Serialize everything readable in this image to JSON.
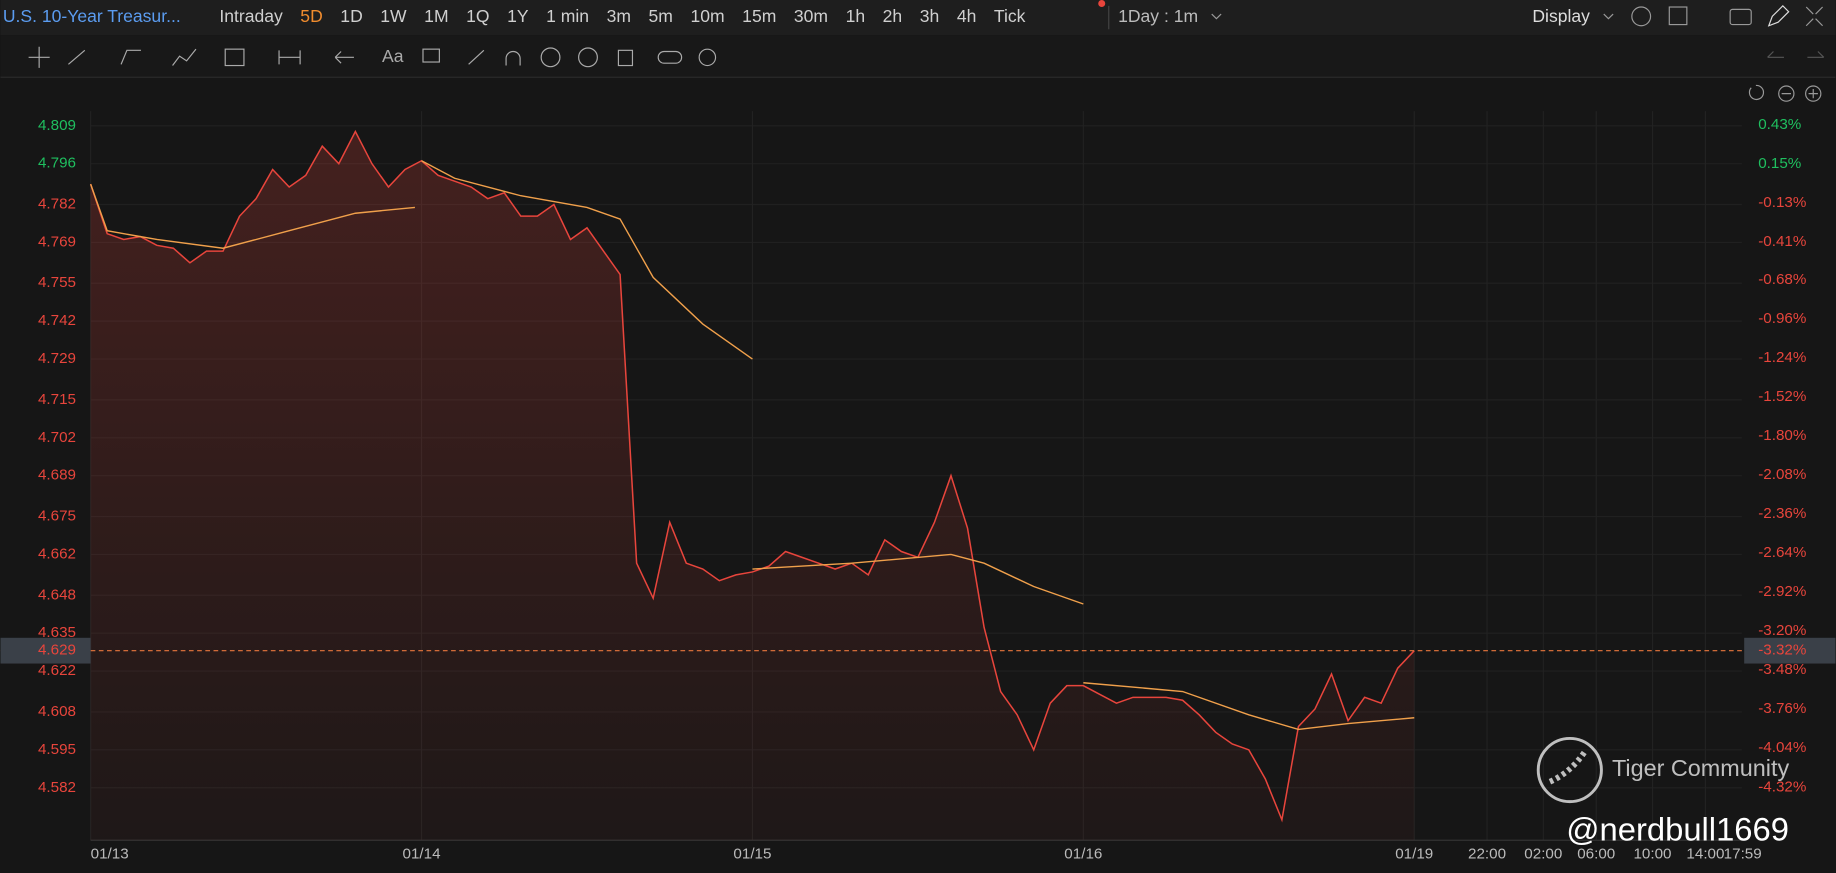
{
  "header": {
    "symbol": "U.S. 10-Year Treasur...",
    "periods": [
      {
        "label": "Intraday"
      },
      {
        "label": "5D",
        "active": true
      },
      {
        "label": "1D"
      },
      {
        "label": "1W"
      },
      {
        "label": "1M"
      },
      {
        "label": "1Q"
      },
      {
        "label": "1Y"
      },
      {
        "label": "1 min"
      },
      {
        "label": "3m"
      },
      {
        "label": "5m"
      },
      {
        "label": "10m"
      },
      {
        "label": "15m"
      },
      {
        "label": "30m"
      },
      {
        "label": "1h"
      },
      {
        "label": "2h"
      },
      {
        "label": "3h"
      },
      {
        "label": "4h"
      },
      {
        "label": "Tick"
      }
    ],
    "interval": "1Day : 1m",
    "display": "Display",
    "text_tool": "Aa"
  },
  "watermark": {
    "brand": "Tiger Community",
    "handle": "@nerdbull1669"
  },
  "chart_data": {
    "type": "line",
    "color": "#e8453c",
    "ma_color": "#f0a04b",
    "grid": true,
    "x": [
      0,
      0.05,
      0.1,
      0.15,
      0.2,
      0.25,
      0.3,
      0.35,
      0.4,
      0.45,
      0.5,
      0.55,
      0.6,
      0.65,
      0.7,
      0.75,
      0.8,
      0.85,
      0.9,
      0.95,
      1,
      1.05,
      1.1,
      1.15,
      1.2,
      1.25,
      1.3,
      1.35,
      1.4,
      1.45,
      1.5,
      1.55,
      1.6,
      1.65,
      1.7,
      1.75,
      1.8,
      1.85,
      1.9,
      1.95,
      2,
      2.05,
      2.1,
      2.15,
      2.2,
      2.25,
      2.3,
      2.35,
      2.4,
      2.45,
      2.5,
      2.55,
      2.6,
      2.65,
      2.7,
      2.75,
      2.8,
      2.85,
      2.9,
      2.95,
      3,
      3.05,
      3.1,
      3.15,
      3.2,
      3.25,
      3.3,
      3.35,
      3.4,
      3.45,
      3.5,
      3.55,
      3.6,
      3.65,
      3.7,
      3.75,
      3.8,
      3.85,
      3.9,
      3.95,
      4
    ],
    "values": [
      4.789,
      4.772,
      4.77,
      4.771,
      4.768,
      4.767,
      4.762,
      4.766,
      4.766,
      4.778,
      4.784,
      4.794,
      4.788,
      4.792,
      4.802,
      4.796,
      4.807,
      4.796,
      4.788,
      4.794,
      4.797,
      4.792,
      4.79,
      4.788,
      4.784,
      4.786,
      4.778,
      4.778,
      4.782,
      4.77,
      4.774,
      4.766,
      4.758,
      4.659,
      4.647,
      4.673,
      4.659,
      4.657,
      4.653,
      4.655,
      4.656,
      4.658,
      4.663,
      4.661,
      4.659,
      4.657,
      4.659,
      4.655,
      4.667,
      4.663,
      4.661,
      4.673,
      4.689,
      4.671,
      4.637,
      4.615,
      4.607,
      4.595,
      4.611,
      4.617,
      4.617,
      4.614,
      4.611,
      4.613,
      4.613,
      4.613,
      4.612,
      4.607,
      4.601,
      4.597,
      4.595,
      4.585,
      4.571,
      4.603,
      4.609,
      4.621,
      4.605,
      4.613,
      4.611,
      4.623,
      4.629
    ],
    "ma": [
      {
        "x": [
          0,
          0.05,
          0.2,
          0.4,
          0.6,
          0.8,
          0.98
        ],
        "values": [
          4.789,
          4.773,
          4.77,
          4.767,
          4.773,
          4.779,
          4.781
        ]
      },
      {
        "x": [
          1,
          1.1,
          1.3,
          1.5,
          1.6,
          1.7,
          1.85,
          2
        ],
        "values": [
          4.797,
          4.791,
          4.785,
          4.781,
          4.777,
          4.757,
          4.741,
          4.729
        ]
      },
      {
        "x": [
          2,
          2.3,
          2.6,
          2.7,
          2.85,
          3
        ],
        "values": [
          4.657,
          4.659,
          4.662,
          4.659,
          4.651,
          4.645
        ]
      },
      {
        "x": [
          3,
          3.3,
          3.5,
          3.65,
          3.8,
          4
        ],
        "values": [
          4.618,
          4.615,
          4.607,
          4.602,
          4.604,
          4.606
        ]
      }
    ],
    "current_price": 4.629,
    "current_change": {
      "value": -3.32,
      "label": "-3.32%"
    },
    "xlim": [
      0,
      4.99
    ],
    "xticks": [
      {
        "value": 0,
        "label": "01/13"
      },
      {
        "value": 1,
        "label": "01/14"
      },
      {
        "value": 2,
        "label": "01/15"
      },
      {
        "value": 3,
        "label": "01/16"
      },
      {
        "value": 4,
        "label": "01/19"
      },
      {
        "value": 4.22,
        "label": "22:00"
      },
      {
        "value": 4.39,
        "label": "02:00"
      },
      {
        "value": 4.55,
        "label": "06:00"
      },
      {
        "value": 4.72,
        "label": "10:00"
      },
      {
        "value": 4.88,
        "label": "14:00"
      },
      {
        "value": 5.05,
        "label": "17:59"
      }
    ],
    "ylim": [
      4.564,
      4.814
    ],
    "yticks": [
      4.809,
      4.796,
      4.782,
      4.769,
      4.755,
      4.742,
      4.729,
      4.715,
      4.702,
      4.689,
      4.675,
      4.662,
      4.648,
      4.635,
      4.622,
      4.608,
      4.595,
      4.582
    ],
    "y2lim": [
      -4.7,
      0.53
    ],
    "y2ticks": [
      {
        "value": 0.43,
        "label": "0.43%"
      },
      {
        "value": 0.15,
        "label": "0.15%"
      },
      {
        "value": -0.13,
        "label": "-0.13%"
      },
      {
        "value": -0.41,
        "label": "-0.41%"
      },
      {
        "value": -0.68,
        "label": "-0.68%"
      },
      {
        "value": -0.96,
        "label": "-0.96%"
      },
      {
        "value": -1.24,
        "label": "-1.24%"
      },
      {
        "value": -1.52,
        "label": "-1.52%"
      },
      {
        "value": -1.8,
        "label": "-1.80%"
      },
      {
        "value": -2.08,
        "label": "-2.08%"
      },
      {
        "value": -2.36,
        "label": "-2.36%"
      },
      {
        "value": -2.64,
        "label": "-2.64%"
      },
      {
        "value": -2.92,
        "label": "-2.92%"
      },
      {
        "value": -3.2,
        "label": "-3.20%"
      },
      {
        "value": -3.48,
        "label": "-3.48%"
      },
      {
        "value": -3.76,
        "label": "-3.76%"
      },
      {
        "value": -4.04,
        "label": "-4.04%"
      },
      {
        "value": -4.32,
        "label": "-4.32%"
      }
    ]
  }
}
